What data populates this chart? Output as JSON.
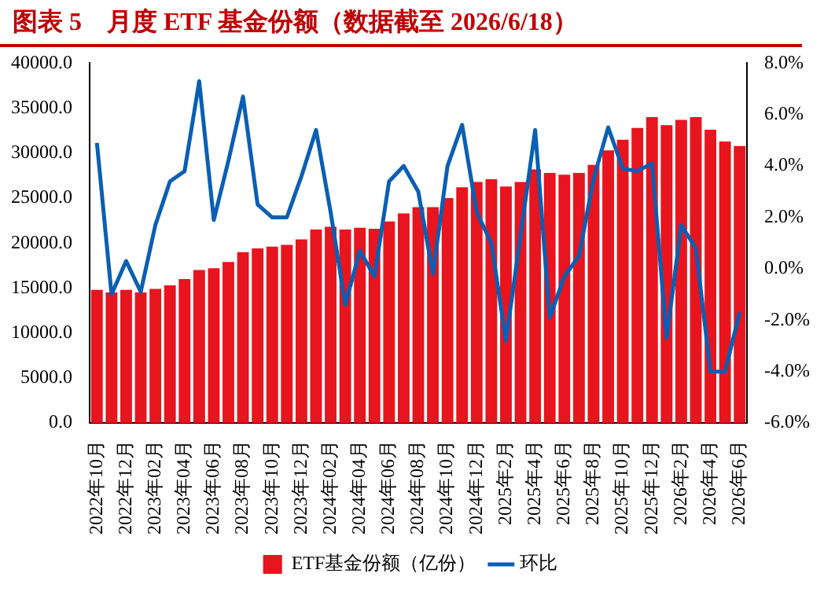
{
  "chart_data": {
    "type": "bar",
    "title": "图表 5　月度 ETF 基金份额（数据截至 2026/6/18）",
    "categories": [
      "2022年10月",
      null,
      "2022年12月",
      null,
      "2023年02月",
      null,
      "2023年04月",
      null,
      "2023年06月",
      null,
      "2023年08月",
      null,
      "2023年10月",
      null,
      "2023年12月",
      null,
      "2024年02月",
      null,
      "2024年04月",
      null,
      "2024年06月",
      null,
      "2024年08月",
      null,
      "2024年10月",
      null,
      "2024年12月",
      null,
      "2025年2月",
      null,
      "2025年4月",
      null,
      "2025年6月",
      null,
      "2025年8月",
      null,
      "2025年10月",
      null,
      "2025年12月",
      null,
      "2026年2月",
      null,
      "2026年4月",
      null,
      "2026年6月"
    ],
    "series": [
      {
        "name": "ETF基金份额（亿份）",
        "color": "#e8141e",
        "values": [
          14800,
          14500,
          14800,
          14500,
          14900,
          15300,
          16000,
          17000,
          17200,
          17900,
          19000,
          19400,
          19600,
          19800,
          20400,
          21500,
          21800,
          21500,
          21700,
          21600,
          22400,
          23300,
          24000,
          24000,
          25000,
          26200,
          26800,
          27100,
          26300,
          26800,
          28200,
          27800,
          27600,
          27800,
          28700,
          30300,
          31500,
          32800,
          34000,
          33100,
          33700,
          34000,
          32600,
          31300,
          30800
        ]
      },
      {
        "name": "环比",
        "type": "line",
        "axis": "y2",
        "color": "#0a5fb4",
        "values": [
          4.9,
          -1.0,
          0.3,
          -0.9,
          1.7,
          3.4,
          3.8,
          7.3,
          1.9,
          4.2,
          6.7,
          2.5,
          2.0,
          2.0,
          3.6,
          5.4,
          2.2,
          -1.4,
          0.7,
          -0.3,
          3.4,
          4.0,
          3.0,
          -0.2,
          4.0,
          5.6,
          2.2,
          1.0,
          -2.8,
          1.3,
          5.4,
          -1.9,
          -0.3,
          0.5,
          3.5,
          5.5,
          3.9,
          3.8,
          4.1,
          -2.7,
          1.7,
          0.8,
          -4.0,
          -4.0,
          -1.7
        ]
      }
    ],
    "ylim": [
      0,
      40000
    ],
    "yticks": [
      {
        "value": 0,
        "label": "0.0"
      },
      {
        "value": 5000,
        "label": "5000.0"
      },
      {
        "value": 10000,
        "label": "10000.0"
      },
      {
        "value": 15000,
        "label": "15000.0"
      },
      {
        "value": 20000,
        "label": "20000.0"
      },
      {
        "value": 25000,
        "label": "25000.0"
      },
      {
        "value": 30000,
        "label": "30000.0"
      },
      {
        "value": 35000,
        "label": "35000.0"
      },
      {
        "value": 40000,
        "label": "40000.0"
      }
    ],
    "y2lim": [
      -6,
      8
    ],
    "y2ticks": [
      {
        "value": -6,
        "label": "-6.0%"
      },
      {
        "value": -4,
        "label": "-4.0%"
      },
      {
        "value": -2,
        "label": "-2.0%"
      },
      {
        "value": 0,
        "label": "0.0%"
      },
      {
        "value": 2,
        "label": "2.0%"
      },
      {
        "value": 4,
        "label": "4.0%"
      },
      {
        "value": 6,
        "label": "6.0%"
      },
      {
        "value": 8,
        "label": "8.0%"
      }
    ],
    "legend": "bottom",
    "grid": false,
    "marker": "none",
    "line_style": "solid"
  }
}
